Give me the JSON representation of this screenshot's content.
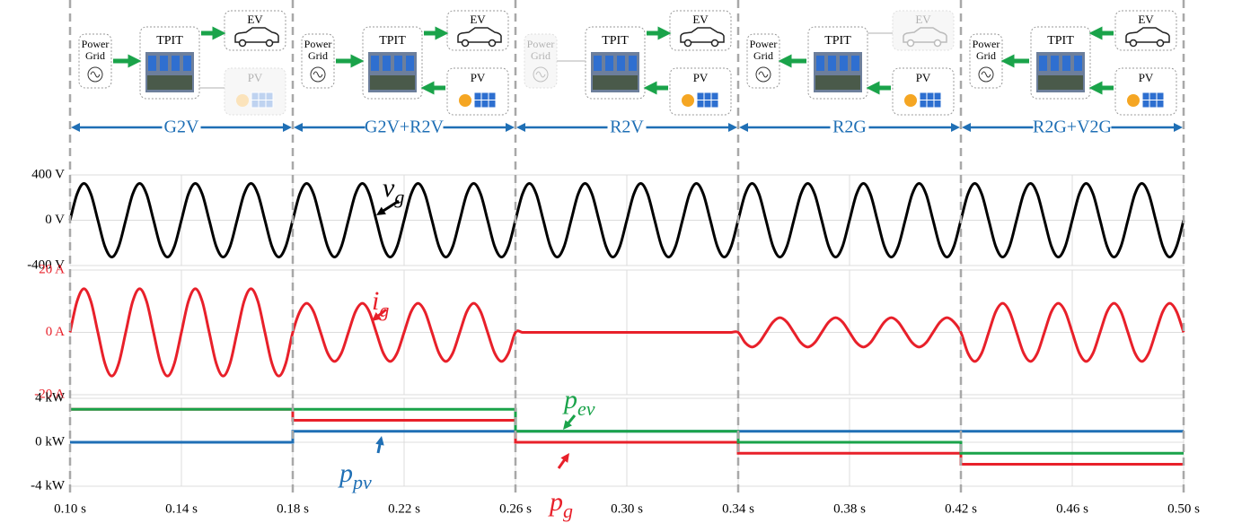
{
  "diagrams": [
    {
      "mode": "G2V",
      "grid": [
        "Power",
        "Grid"
      ],
      "converter": "TPIT",
      "ev": "EV",
      "pv": "PV"
    },
    {
      "mode": "G2V+R2V",
      "grid": [
        "Power",
        "Grid"
      ],
      "converter": "TPIT",
      "ev": "EV",
      "pv": "PV"
    },
    {
      "mode": "R2V",
      "grid": [
        "Power",
        "Grid"
      ],
      "converter": "TPIT",
      "ev": "EV",
      "pv": "PV"
    },
    {
      "mode": "R2G",
      "grid": [
        "Power",
        "Grid"
      ],
      "converter": "TPIT",
      "ev": "EV",
      "pv": "PV"
    },
    {
      "mode": "R2G+V2G",
      "grid": [
        "Power",
        "Grid"
      ],
      "converter": "TPIT",
      "ev": "EV",
      "pv": "PV"
    }
  ],
  "chart_data": [
    {
      "type": "line",
      "smooth": true,
      "xlim": [
        0.1,
        0.5
      ],
      "ylim": [
        -400,
        400
      ],
      "grid": true,
      "label_color": "#000000",
      "yticks": [
        {
          "value": 400,
          "label": "400 V"
        },
        {
          "value": 0,
          "label": "0 V"
        },
        {
          "value": -400,
          "label": "-400 V"
        }
      ],
      "x": [
        0.1,
        0.1025,
        0.105,
        0.1075,
        0.11,
        0.1125,
        0.115,
        0.1175,
        0.12,
        0.1225,
        0.125,
        0.1275,
        0.13,
        0.1325,
        0.135,
        0.1375,
        0.14,
        0.1425,
        0.145,
        0.1475,
        0.15,
        0.1525,
        0.155,
        0.1575,
        0.16,
        0.1625,
        0.165,
        0.1675,
        0.17,
        0.1725,
        0.175,
        0.1775,
        0.18,
        0.1825,
        0.185,
        0.1875,
        0.19,
        0.1925,
        0.195,
        0.1975,
        0.2,
        0.2025,
        0.205,
        0.2075,
        0.21,
        0.2125,
        0.215,
        0.2175,
        0.22,
        0.2225,
        0.225,
        0.2275,
        0.23,
        0.2325,
        0.235,
        0.2375,
        0.24,
        0.2425,
        0.245,
        0.2475,
        0.25,
        0.2525,
        0.255,
        0.2575,
        0.26,
        0.2625,
        0.265,
        0.2675,
        0.27,
        0.2725,
        0.275,
        0.2775,
        0.28,
        0.2825,
        0.285,
        0.2875,
        0.29,
        0.2925,
        0.295,
        0.2975,
        0.3,
        0.3025,
        0.305,
        0.3075,
        0.31,
        0.3125,
        0.315,
        0.3175,
        0.32,
        0.3225,
        0.325,
        0.3275,
        0.33,
        0.3325,
        0.335,
        0.3375,
        0.34,
        0.3425,
        0.345,
        0.3475,
        0.35,
        0.3525,
        0.355,
        0.3575,
        0.36,
        0.3625,
        0.365,
        0.3675,
        0.37,
        0.3725,
        0.375,
        0.3775,
        0.38,
        0.3825,
        0.385,
        0.3875,
        0.39,
        0.3925,
        0.395,
        0.3975,
        0.4,
        0.4025,
        0.405,
        0.4075,
        0.41,
        0.4125,
        0.415,
        0.4175,
        0.42,
        0.4225,
        0.425,
        0.4275,
        0.43,
        0.4325,
        0.435,
        0.4375,
        0.44,
        0.4425,
        0.445,
        0.4475,
        0.45,
        0.4525,
        0.455,
        0.4575,
        0.46,
        0.4625,
        0.465,
        0.4675,
        0.47,
        0.4725,
        0.475,
        0.4775,
        0.48,
        0.4825,
        0.485,
        0.4875,
        0.49,
        0.4925,
        0.495,
        0.4975,
        0.5
      ],
      "series": [
        {
          "name": "v",
          "subscript": "g",
          "color": "#000000",
          "values": [
            0,
            230,
            325,
            230,
            0,
            -230,
            -325,
            -230,
            0,
            230,
            325,
            230,
            0,
            -230,
            -325,
            -230,
            0,
            230,
            325,
            230,
            0,
            -230,
            -325,
            -230,
            0,
            230,
            325,
            230,
            0,
            -230,
            -325,
            -230,
            0,
            230,
            325,
            230,
            0,
            -230,
            -325,
            -230,
            0,
            230,
            325,
            230,
            0,
            -230,
            -325,
            -230,
            0,
            230,
            325,
            230,
            0,
            -230,
            -325,
            -230,
            0,
            230,
            325,
            230,
            0,
            -230,
            -325,
            -230,
            0,
            230,
            325,
            230,
            0,
            -230,
            -325,
            -230,
            0,
            230,
            325,
            230,
            0,
            -230,
            -325,
            -230,
            0,
            230,
            325,
            230,
            0,
            -230,
            -325,
            -230,
            0,
            230,
            325,
            230,
            0,
            -230,
            -325,
            -230,
            0,
            230,
            325,
            230,
            0,
            -230,
            -325,
            -230,
            0,
            230,
            325,
            230,
            0,
            -230,
            -325,
            -230,
            0,
            230,
            325,
            230,
            0,
            -230,
            -325,
            -230,
            0,
            230,
            325,
            230,
            0,
            -230,
            -325,
            -230,
            0,
            230,
            325,
            230,
            0,
            -230,
            -325,
            -230,
            0,
            230,
            325,
            230,
            0,
            -230,
            -325,
            -230,
            0,
            230,
            325,
            230,
            0,
            -230,
            -325,
            -230,
            0,
            230,
            325,
            230,
            0,
            -230,
            -325,
            -230,
            0
          ]
        }
      ]
    },
    {
      "type": "line",
      "smooth": true,
      "xlim": [
        0.1,
        0.5
      ],
      "ylim": [
        -20,
        20
      ],
      "grid": true,
      "label_color": "#e8202a",
      "yticks": [
        {
          "value": 20,
          "label": "20 A"
        },
        {
          "value": 0,
          "label": "0 A"
        },
        {
          "value": -20,
          "label": "-20 A"
        }
      ],
      "x": [
        0.1,
        0.1025,
        0.105,
        0.1075,
        0.11,
        0.1125,
        0.115,
        0.1175,
        0.12,
        0.1225,
        0.125,
        0.1275,
        0.13,
        0.1325,
        0.135,
        0.1375,
        0.14,
        0.1425,
        0.145,
        0.1475,
        0.15,
        0.1525,
        0.155,
        0.1575,
        0.16,
        0.1625,
        0.165,
        0.1675,
        0.17,
        0.1725,
        0.175,
        0.1775,
        0.18,
        0.1825,
        0.185,
        0.1875,
        0.19,
        0.1925,
        0.195,
        0.1975,
        0.2,
        0.2025,
        0.205,
        0.2075,
        0.21,
        0.2125,
        0.215,
        0.2175,
        0.22,
        0.2225,
        0.225,
        0.2275,
        0.23,
        0.2325,
        0.235,
        0.2375,
        0.24,
        0.2425,
        0.245,
        0.2475,
        0.25,
        0.2525,
        0.255,
        0.2575,
        0.26,
        0.2625,
        0.265,
        0.2675,
        0.27,
        0.2725,
        0.275,
        0.2775,
        0.28,
        0.2825,
        0.285,
        0.2875,
        0.29,
        0.2925,
        0.295,
        0.2975,
        0.3,
        0.3025,
        0.305,
        0.3075,
        0.31,
        0.3125,
        0.315,
        0.3175,
        0.32,
        0.3225,
        0.325,
        0.3275,
        0.33,
        0.3325,
        0.335,
        0.3375,
        0.34,
        0.3425,
        0.345,
        0.3475,
        0.35,
        0.3525,
        0.355,
        0.3575,
        0.36,
        0.3625,
        0.365,
        0.3675,
        0.37,
        0.3725,
        0.375,
        0.3775,
        0.38,
        0.3825,
        0.385,
        0.3875,
        0.39,
        0.3925,
        0.395,
        0.3975,
        0.4,
        0.4025,
        0.405,
        0.4075,
        0.41,
        0.4125,
        0.415,
        0.4175,
        0.42,
        0.4225,
        0.425,
        0.4275,
        0.43,
        0.4325,
        0.435,
        0.4375,
        0.44,
        0.4425,
        0.445,
        0.4475,
        0.45,
        0.4525,
        0.455,
        0.4575,
        0.46,
        0.4625,
        0.465,
        0.4675,
        0.47,
        0.4725,
        0.475,
        0.4775,
        0.48,
        0.4825,
        0.485,
        0.4875,
        0.49,
        0.4925,
        0.495,
        0.4975,
        0.5
      ],
      "series": [
        {
          "name": "i",
          "subscript": "g",
          "color": "#e8202a",
          "values": [
            0,
            9.9,
            14,
            9.9,
            0,
            -9.9,
            -14,
            -9.9,
            0,
            9.9,
            14,
            9.9,
            0,
            -9.9,
            -14,
            -9.9,
            0,
            9.9,
            14,
            9.9,
            0,
            -9.9,
            -14,
            -9.9,
            0,
            9.9,
            14,
            9.9,
            0,
            -9.9,
            -14,
            -9.9,
            0,
            6.6,
            9.3,
            6.6,
            0,
            -6.6,
            -9.3,
            -6.6,
            0,
            6.6,
            9.3,
            6.6,
            0,
            -6.6,
            -9.3,
            -6.6,
            0,
            6.6,
            9.3,
            6.6,
            0,
            -6.6,
            -9.3,
            -6.6,
            0,
            6.6,
            9.3,
            6.6,
            0,
            -6.6,
            -9.3,
            -6.6,
            0,
            0,
            0,
            0,
            0,
            0,
            0,
            0,
            0,
            0,
            0,
            0,
            0,
            0,
            0,
            0,
            0,
            0,
            0,
            0,
            0,
            0,
            0,
            0,
            0,
            0,
            0,
            0,
            0,
            0,
            0,
            0,
            0,
            -3.3,
            -4.7,
            -3.3,
            0,
            3.3,
            4.7,
            3.3,
            0,
            -3.3,
            -4.7,
            -3.3,
            0,
            3.3,
            4.7,
            3.3,
            0,
            -3.3,
            -4.7,
            -3.3,
            0,
            3.3,
            4.7,
            3.3,
            0,
            -3.3,
            -4.7,
            -3.3,
            0,
            3.3,
            4.7,
            3.3,
            0,
            -6.6,
            -9.3,
            -6.6,
            0,
            6.6,
            9.3,
            6.6,
            0,
            -6.6,
            -9.3,
            -6.6,
            0,
            6.6,
            9.3,
            6.6,
            0,
            -6.6,
            -9.3,
            -6.6,
            0,
            6.6,
            9.3,
            6.6,
            0,
            -6.6,
            -9.3,
            -6.6,
            0,
            6.6,
            9.3,
            6.6,
            0
          ]
        }
      ]
    },
    {
      "type": "line",
      "smooth": false,
      "xlim": [
        0.1,
        0.5
      ],
      "ylim": [
        -4,
        4
      ],
      "grid": true,
      "label_color": "#000000",
      "yticks": [
        {
          "value": 4,
          "label": "4 kW"
        },
        {
          "value": 0,
          "label": "0 kW"
        },
        {
          "value": -4,
          "label": "-4 kW"
        }
      ],
      "xticks": [
        {
          "value": 0.1,
          "label": "0.10 s"
        },
        {
          "value": 0.14,
          "label": "0.14 s"
        },
        {
          "value": 0.18,
          "label": "0.18 s"
        },
        {
          "value": 0.22,
          "label": "0.22 s"
        },
        {
          "value": 0.26,
          "label": "0.26 s"
        },
        {
          "value": 0.3,
          "label": "0.30 s"
        },
        {
          "value": 0.34,
          "label": "0.34 s"
        },
        {
          "value": 0.38,
          "label": "0.38 s"
        },
        {
          "value": 0.42,
          "label": "0.42 s"
        },
        {
          "value": 0.46,
          "label": "0.46 s"
        },
        {
          "value": 0.5,
          "label": "0.50 s"
        }
      ],
      "x": [
        0.1,
        0.18,
        0.18,
        0.26,
        0.26,
        0.34,
        0.34,
        0.42,
        0.42,
        0.5
      ],
      "series": [
        {
          "name": "p",
          "subscript": "g",
          "color": "#e8202a",
          "values": [
            3,
            3,
            2,
            2,
            0,
            0,
            -1,
            -1,
            -2,
            -2
          ]
        },
        {
          "name": "p",
          "subscript": "pv",
          "color": "#1f6fb5",
          "values": [
            0,
            0,
            1,
            1,
            1,
            1,
            1,
            1,
            1,
            1
          ]
        },
        {
          "name": "p",
          "subscript": "ev",
          "color": "#1aa34a",
          "values": [
            3,
            3,
            3,
            3,
            1,
            1,
            0,
            0,
            -1,
            -1
          ]
        }
      ]
    }
  ]
}
